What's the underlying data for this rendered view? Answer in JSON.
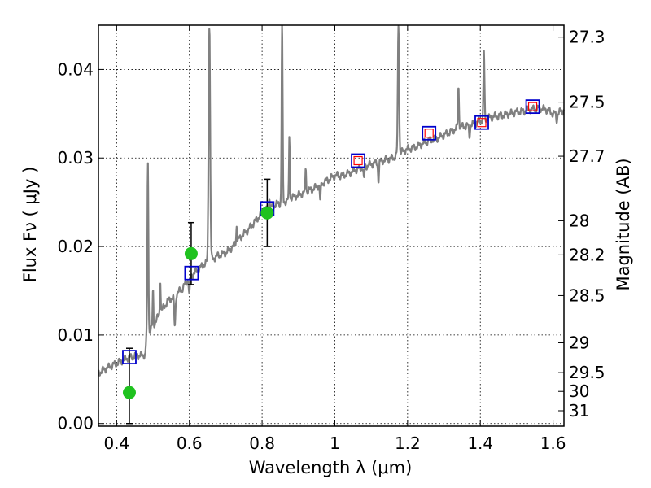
{
  "chart_data": {
    "type": "scatter",
    "xlabel": "Wavelength  λ (μm)",
    "ylabel": "Flux  Fν  ( μJy )",
    "y2label": "Magnitude (AB)",
    "xlim": [
      0.35,
      1.63
    ],
    "ylim": [
      -0.0003,
      0.045
    ],
    "grid": true,
    "x_ticks": [
      {
        "value": 0.4,
        "label": "0.4"
      },
      {
        "value": 0.6,
        "label": "0.6"
      },
      {
        "value": 0.8,
        "label": "0.8"
      },
      {
        "value": 1.0,
        "label": "1"
      },
      {
        "value": 1.2,
        "label": "1.2"
      },
      {
        "value": 1.4,
        "label": "1.4"
      },
      {
        "value": 1.6,
        "label": "1.6"
      }
    ],
    "y_ticks": [
      {
        "value": 0.0,
        "label": "0.00"
      },
      {
        "value": 0.01,
        "label": "0.01"
      },
      {
        "value": 0.02,
        "label": "0.02"
      },
      {
        "value": 0.03,
        "label": "0.03"
      },
      {
        "value": 0.04,
        "label": "0.04"
      }
    ],
    "y2_ticks": [
      {
        "value": 27.3,
        "label": "27.3"
      },
      {
        "value": 27.5,
        "label": "27.5"
      },
      {
        "value": 27.7,
        "label": "27.7"
      },
      {
        "value": 28,
        "label": "28"
      },
      {
        "value": 28.2,
        "label": "28.2"
      },
      {
        "value": 28.5,
        "label": "28.5"
      },
      {
        "value": 29,
        "label": "29"
      },
      {
        "value": 29.5,
        "label": "29.5"
      },
      {
        "value": 30,
        "label": "30"
      },
      {
        "value": 31,
        "label": "31"
      }
    ],
    "colors": {
      "spectrum": "#808080",
      "observed": "#1fc21f",
      "model_box": "#0000cc",
      "model_box_inner": "#ff0000",
      "grid": "#000000"
    },
    "spectrum": {
      "continuum": [
        [
          0.35,
          0.0057
        ],
        [
          0.37,
          0.0062
        ],
        [
          0.39,
          0.0066
        ],
        [
          0.41,
          0.007
        ],
        [
          0.43,
          0.0074
        ],
        [
          0.45,
          0.0076
        ],
        [
          0.47,
          0.0077
        ],
        [
          0.479,
          0.0078
        ],
        [
          0.482,
          0.01
        ],
        [
          0.5,
          0.011
        ],
        [
          0.52,
          0.0125
        ],
        [
          0.54,
          0.0138
        ],
        [
          0.56,
          0.0145
        ],
        [
          0.58,
          0.0152
        ],
        [
          0.6,
          0.0165
        ],
        [
          0.62,
          0.0172
        ],
        [
          0.64,
          0.018
        ],
        [
          0.66,
          0.0185
        ],
        [
          0.68,
          0.019
        ],
        [
          0.7,
          0.0193
        ],
        [
          0.72,
          0.02
        ],
        [
          0.74,
          0.021
        ],
        [
          0.76,
          0.0218
        ],
        [
          0.78,
          0.0228
        ],
        [
          0.8,
          0.0238
        ],
        [
          0.82,
          0.0243
        ],
        [
          0.84,
          0.0248
        ],
        [
          0.86,
          0.025
        ],
        [
          0.88,
          0.0255
        ],
        [
          0.9,
          0.0258
        ],
        [
          0.92,
          0.0262
        ],
        [
          0.94,
          0.0265
        ],
        [
          0.96,
          0.027
        ],
        [
          0.98,
          0.0275
        ],
        [
          1.0,
          0.028
        ],
        [
          1.02,
          0.028
        ],
        [
          1.04,
          0.0283
        ],
        [
          1.06,
          0.0287
        ],
        [
          1.08,
          0.029
        ],
        [
          1.1,
          0.0293
        ],
        [
          1.12,
          0.0295
        ],
        [
          1.14,
          0.0298
        ],
        [
          1.16,
          0.03
        ],
        [
          1.18,
          0.0306
        ],
        [
          1.2,
          0.031
        ],
        [
          1.22,
          0.0312
        ],
        [
          1.24,
          0.0316
        ],
        [
          1.26,
          0.032
        ],
        [
          1.28,
          0.0322
        ],
        [
          1.3,
          0.0326
        ],
        [
          1.32,
          0.033
        ],
        [
          1.34,
          0.0335
        ],
        [
          1.36,
          0.0336
        ],
        [
          1.38,
          0.0338
        ],
        [
          1.4,
          0.0342
        ],
        [
          1.42,
          0.0345
        ],
        [
          1.44,
          0.0347
        ],
        [
          1.46,
          0.0348
        ],
        [
          1.48,
          0.035
        ],
        [
          1.5,
          0.0352
        ],
        [
          1.52,
          0.0353
        ],
        [
          1.54,
          0.0355
        ],
        [
          1.56,
          0.0356
        ],
        [
          1.58,
          0.0355
        ],
        [
          1.6,
          0.035
        ],
        [
          1.62,
          0.0352
        ],
        [
          1.63,
          0.0354
        ]
      ],
      "lines": [
        {
          "x": 0.486,
          "peak": 0.0295,
          "width": 0.004
        },
        {
          "x": 0.5,
          "peak": 0.015,
          "width": 0.003
        },
        {
          "x": 0.52,
          "peak": 0.0165,
          "width": 0.003
        },
        {
          "x": 0.655,
          "peak": 0.045,
          "width": 0.006
        },
        {
          "x": 0.73,
          "peak": 0.0225,
          "width": 0.003
        },
        {
          "x": 0.82,
          "peak": 0.0258,
          "width": 0.003
        },
        {
          "x": 0.855,
          "peak": 0.045,
          "width": 0.004
        },
        {
          "x": 0.875,
          "peak": 0.0325,
          "width": 0.003
        },
        {
          "x": 0.92,
          "peak": 0.029,
          "width": 0.003
        },
        {
          "x": 1.175,
          "peak": 0.045,
          "width": 0.005
        },
        {
          "x": 1.34,
          "peak": 0.038,
          "width": 0.004
        },
        {
          "x": 1.41,
          "peak": 0.042,
          "width": 0.004
        }
      ],
      "dips": [
        {
          "x": 0.56,
          "depth": 0.0035,
          "width": 0.005
        },
        {
          "x": 0.6,
          "depth": 0.002,
          "width": 0.004
        },
        {
          "x": 0.96,
          "depth": 0.0018,
          "width": 0.004
        },
        {
          "x": 1.08,
          "depth": 0.0015,
          "width": 0.004
        },
        {
          "x": 1.12,
          "depth": 0.002,
          "width": 0.004
        },
        {
          "x": 1.37,
          "depth": 0.0012,
          "width": 0.004
        },
        {
          "x": 1.61,
          "depth": 0.0008,
          "width": 0.005
        }
      ]
    },
    "observed_points": [
      {
        "x": 0.435,
        "y": 0.0035,
        "err_low": 0.0035,
        "err_high": 0.005
      },
      {
        "x": 0.605,
        "y": 0.0192,
        "err_low": 0.0035,
        "err_high": 0.0035
      },
      {
        "x": 0.814,
        "y": 0.0238,
        "err_low": 0.0038,
        "err_high": 0.0038
      }
    ],
    "model_points": [
      {
        "x": 0.435,
        "y": 0.0075,
        "inner": false
      },
      {
        "x": 0.606,
        "y": 0.017,
        "inner": false
      },
      {
        "x": 0.814,
        "y": 0.0243,
        "inner": false
      },
      {
        "x": 1.064,
        "y": 0.0297,
        "inner": true
      },
      {
        "x": 1.259,
        "y": 0.0328,
        "inner": true
      },
      {
        "x": 1.404,
        "y": 0.034,
        "inner": true
      },
      {
        "x": 1.544,
        "y": 0.0358,
        "inner": true
      }
    ]
  }
}
